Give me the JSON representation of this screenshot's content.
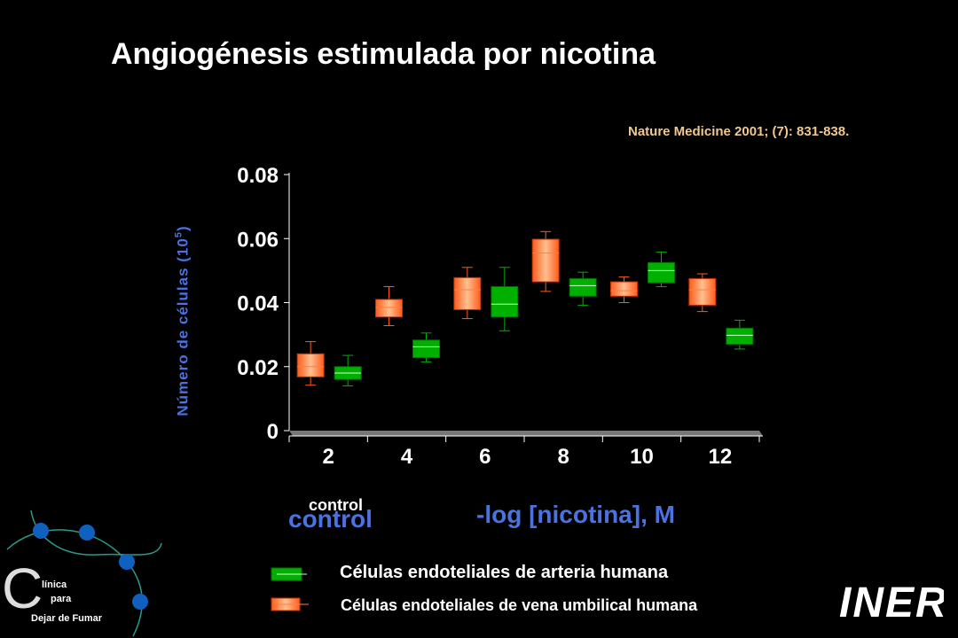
{
  "slide": {
    "title": "Angiogénesis estimulada por nicotina",
    "citation": "Nature Medicine 2001; (7): 831-838.",
    "control_small": "control",
    "control_big": "control"
  },
  "legend": {
    "artery": {
      "label": "Células endoteliales de arteria humana",
      "color": "#00b000"
    },
    "vein": {
      "label": "Células endoteliales de vena umbilical  humana",
      "color": "#ff7a2e"
    }
  },
  "logos": {
    "left": {
      "big_letter": "C",
      "line1": "línica",
      "line2": "para",
      "line3": "Dejar de Fumar"
    },
    "right": {
      "text": "INER"
    }
  },
  "chart_data": {
    "type": "box",
    "ylabel_main": "Número de células (10",
    "ylabel_sup": "5",
    "ylabel_end": ")",
    "xlabel": "-log [nicotina], M",
    "x_ticks": [
      "2",
      "4",
      "6",
      "8",
      "10",
      "12"
    ],
    "y_ticks": [
      "0.08",
      "0.06",
      "0.04",
      "0.02",
      "0"
    ],
    "ylim": [
      0,
      0.08
    ],
    "series": [
      {
        "name": "Células endoteliales de vena umbilical  humana",
        "color": "#ff7a2e",
        "boxes": [
          {
            "x": 2,
            "min": 0.0142,
            "q1": 0.0168,
            "median": 0.02,
            "q3": 0.024,
            "max": 0.0278
          },
          {
            "x": 4,
            "min": 0.0328,
            "q1": 0.0355,
            "median": 0.0385,
            "q3": 0.041,
            "max": 0.045
          },
          {
            "x": 6,
            "min": 0.035,
            "q1": 0.0378,
            "median": 0.044,
            "q3": 0.0478,
            "max": 0.051
          },
          {
            "x": 8,
            "min": 0.0435,
            "q1": 0.0465,
            "median": 0.0555,
            "q3": 0.0598,
            "max": 0.0622
          },
          {
            "x": 10,
            "min": 0.04,
            "q1": 0.042,
            "median": 0.0437,
            "q3": 0.0465,
            "max": 0.048
          },
          {
            "x": 12,
            "min": 0.0372,
            "q1": 0.0392,
            "median": 0.044,
            "q3": 0.0475,
            "max": 0.049
          }
        ]
      },
      {
        "name": "Células endoteliales de arteria humana",
        "color": "#00b000",
        "boxes": [
          {
            "x": 2,
            "min": 0.014,
            "q1": 0.016,
            "median": 0.018,
            "q3": 0.02,
            "max": 0.0235
          },
          {
            "x": 4,
            "min": 0.0215,
            "q1": 0.0228,
            "median": 0.0262,
            "q3": 0.0283,
            "max": 0.0305
          },
          {
            "x": 6,
            "min": 0.0312,
            "q1": 0.0355,
            "median": 0.0395,
            "q3": 0.045,
            "max": 0.051
          },
          {
            "x": 8,
            "min": 0.0392,
            "q1": 0.042,
            "median": 0.0453,
            "q3": 0.0475,
            "max": 0.0495
          },
          {
            "x": 10,
            "min": 0.045,
            "q1": 0.0462,
            "median": 0.05,
            "q3": 0.0525,
            "max": 0.0558
          },
          {
            "x": 12,
            "min": 0.0255,
            "q1": 0.027,
            "median": 0.0298,
            "q3": 0.032,
            "max": 0.0345
          }
        ]
      }
    ]
  }
}
